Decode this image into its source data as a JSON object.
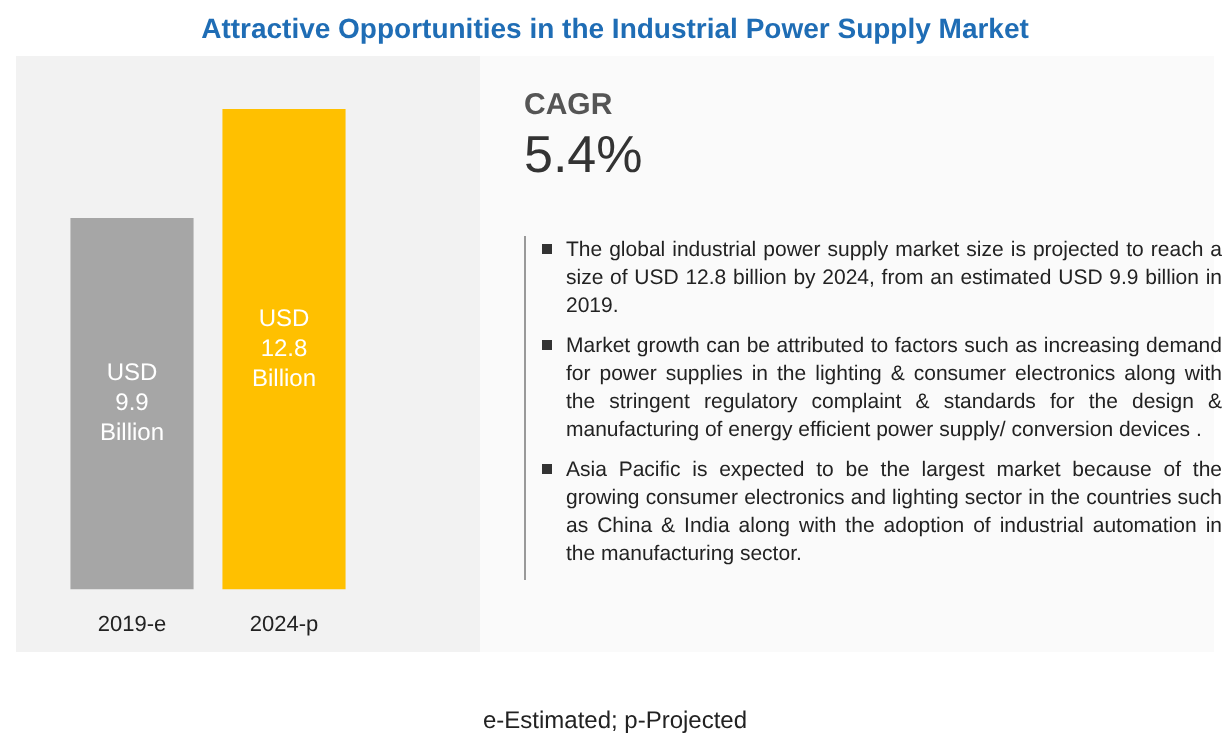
{
  "chart_data": {
    "type": "bar",
    "title": "Attractive Opportunities in the Industrial Power Supply Market",
    "categories": [
      "2019-e",
      "2024-p"
    ],
    "values": [
      9.9,
      12.8
    ],
    "colors": [
      "#a6a6a6",
      "#ffc000"
    ],
    "value_labels": [
      "USD 9.9 Billion",
      "USD 12.8 Billion"
    ],
    "annotations": [
      "CAGR",
      "5.4%",
      "The global industrial power supply market size is projected to reach a size of USD 12.8 billion by 2024, from an estimated USD 9.9 billion in 2019.",
      "Market growth can be attributed to factors such as increasing demand for power supplies in the lighting & consumer electronics along with the stringent regulatory complaint & standards for the design & manufacturing of energy efficient power supply/ conversion devices .",
      "Asia Pacific is expected to be the largest market because of the growing consumer electronics and lighting sector in the countries such as China & India along with the adoption of industrial automation in the manufacturing sector.",
      "e-Estimated; p-Projected"
    ]
  }
}
